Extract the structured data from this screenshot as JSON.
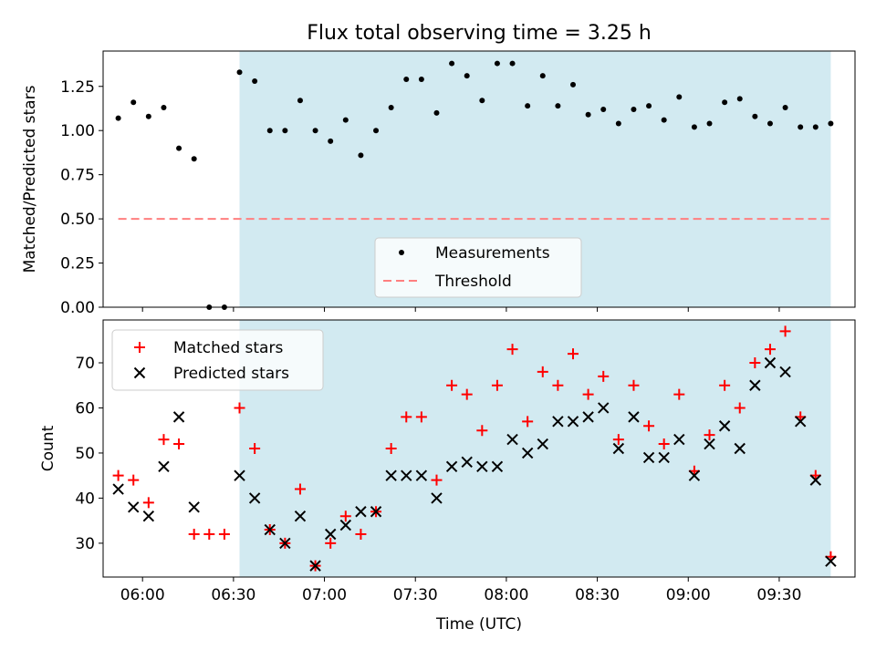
{
  "title": "Flux total observing time = 3.25 h",
  "colors": {
    "shade": "#add8e6",
    "measurement": "#000000",
    "threshold": "#ff7f7f",
    "matched": "#ff0000",
    "predicted": "#000000"
  },
  "chart_data": [
    {
      "type": "scatter",
      "title": "Flux total observing time = 3.25 h",
      "ylabel": "Matched/Predicted stars",
      "xlim": [
        "05:47",
        "09:55"
      ],
      "ylim": [
        0,
        1.45
      ],
      "yticks": [
        0.0,
        0.25,
        0.5,
        0.75,
        1.0,
        1.25
      ],
      "ytick_labels": [
        "0.00",
        "0.25",
        "0.50",
        "0.75",
        "1.00",
        "1.25"
      ],
      "shaded_span": [
        "06:32",
        "09:47"
      ],
      "threshold": {
        "name": "Threshold",
        "value": 0.5,
        "x": [
          "05:52",
          "09:47"
        ]
      },
      "legend": {
        "position": "lower-center",
        "entries": [
          "Measurements",
          "Threshold"
        ]
      },
      "series": [
        {
          "name": "Measurements",
          "x": [
            "05:52",
            "05:57",
            "06:02",
            "06:07",
            "06:12",
            "06:17",
            "06:22",
            "06:27",
            "06:32",
            "06:37",
            "06:42",
            "06:47",
            "06:52",
            "06:57",
            "07:02",
            "07:07",
            "07:12",
            "07:17",
            "07:22",
            "07:27",
            "07:32",
            "07:37",
            "07:42",
            "07:47",
            "07:52",
            "07:57",
            "08:02",
            "08:07",
            "08:12",
            "08:17",
            "08:22",
            "08:27",
            "08:32",
            "08:37",
            "08:42",
            "08:47",
            "08:52",
            "08:57",
            "09:02",
            "09:07",
            "09:12",
            "09:17",
            "09:22",
            "09:27",
            "09:32",
            "09:37",
            "09:42",
            "09:47"
          ],
          "y": [
            1.07,
            1.16,
            1.08,
            1.13,
            0.9,
            0.84,
            0.0,
            0.0,
            1.33,
            1.28,
            1.0,
            1.0,
            1.17,
            1.0,
            0.94,
            1.06,
            0.86,
            1.0,
            1.13,
            1.29,
            1.29,
            1.1,
            1.38,
            1.31,
            1.17,
            1.38,
            1.38,
            1.14,
            1.31,
            1.14,
            1.26,
            1.09,
            1.12,
            1.04,
            1.12,
            1.14,
            1.06,
            1.19,
            1.02,
            1.04,
            1.16,
            1.18,
            1.08,
            1.04,
            1.13,
            1.02,
            1.02,
            1.04
          ]
        }
      ]
    },
    {
      "type": "scatter",
      "xlabel": "Time (UTC)",
      "ylabel": "Count",
      "xlim": [
        "05:47",
        "09:55"
      ],
      "ylim": [
        22.5,
        79.5
      ],
      "yticks": [
        30,
        40,
        50,
        60,
        70
      ],
      "xticks": [
        "06:00",
        "06:30",
        "07:00",
        "07:30",
        "08:00",
        "08:30",
        "09:00",
        "09:30"
      ],
      "shaded_span": [
        "06:32",
        "09:47"
      ],
      "legend": {
        "position": "top-left",
        "entries": [
          "Matched stars",
          "Predicted stars"
        ]
      },
      "x": [
        "05:52",
        "05:57",
        "06:02",
        "06:07",
        "06:12",
        "06:17",
        "06:22",
        "06:27",
        "06:32",
        "06:37",
        "06:42",
        "06:47",
        "06:52",
        "06:57",
        "07:02",
        "07:07",
        "07:12",
        "07:17",
        "07:22",
        "07:27",
        "07:32",
        "07:37",
        "07:42",
        "07:47",
        "07:52",
        "07:57",
        "08:02",
        "08:07",
        "08:12",
        "08:17",
        "08:22",
        "08:27",
        "08:32",
        "08:37",
        "08:42",
        "08:47",
        "08:52",
        "08:57",
        "09:02",
        "09:07",
        "09:12",
        "09:17",
        "09:22",
        "09:27",
        "09:32",
        "09:37",
        "09:42",
        "09:47"
      ],
      "series": [
        {
          "name": "Matched stars",
          "values": [
            45,
            44,
            39,
            53,
            52,
            32,
            32,
            32,
            60,
            51,
            33,
            30,
            42,
            25,
            30,
            36,
            32,
            37,
            51,
            58,
            58,
            44,
            65,
            63,
            55,
            65,
            73,
            57,
            68,
            65,
            72,
            63,
            67,
            53,
            65,
            56,
            52,
            63,
            46,
            54,
            65,
            60,
            70,
            73,
            77,
            58,
            45,
            27
          ]
        },
        {
          "name": "Predicted stars",
          "values": [
            42,
            38,
            36,
            47,
            58,
            38,
            null,
            null,
            45,
            40,
            33,
            30,
            36,
            25,
            32,
            34,
            37,
            37,
            45,
            45,
            45,
            40,
            47,
            48,
            47,
            47,
            53,
            50,
            52,
            57,
            57,
            58,
            60,
            51,
            58,
            49,
            49,
            53,
            45,
            52,
            56,
            51,
            65,
            70,
            68,
            57,
            44,
            26
          ]
        }
      ]
    }
  ]
}
